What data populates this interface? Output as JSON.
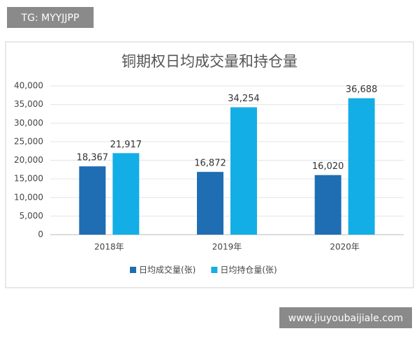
{
  "tag_label": "TG: MYYJJPP",
  "site_label": "www.jiuyoubaijiale.com",
  "chart_data": {
    "type": "bar",
    "title": "铜期权日均成交量和持仓量",
    "categories": [
      "2018年",
      "2019年",
      "2020年"
    ],
    "series": [
      {
        "name": "日均成交量(张)",
        "color": "#1f6db3",
        "values": [
          18367,
          16872,
          16020
        ],
        "value_labels": [
          "18,367",
          "16,872",
          "16,020"
        ]
      },
      {
        "name": "日均持仓量(张)",
        "color": "#14aee6",
        "values": [
          21917,
          34254,
          36688
        ],
        "value_labels": [
          "21,917",
          "34,254",
          "36,688"
        ]
      }
    ],
    "ylim": [
      0,
      40000
    ],
    "yticks": [
      {
        "value": 0,
        "label": "0"
      },
      {
        "value": 5000,
        "label": "5,000"
      },
      {
        "value": 10000,
        "label": "10,000"
      },
      {
        "value": 15000,
        "label": "15,000"
      },
      {
        "value": 20000,
        "label": "20,000"
      },
      {
        "value": 25000,
        "label": "25,000"
      },
      {
        "value": 30000,
        "label": "30,000"
      },
      {
        "value": 35000,
        "label": "35,000"
      },
      {
        "value": 40000,
        "label": "40,000"
      }
    ],
    "grid": true,
    "legend": "bottom"
  }
}
